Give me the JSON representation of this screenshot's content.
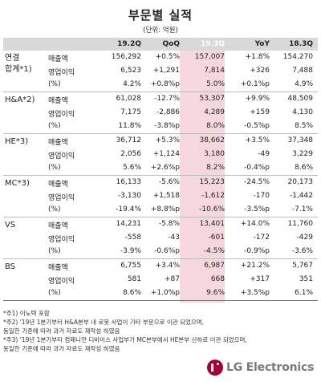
{
  "title": "부문별 실적",
  "unit": "(단위: 억원)",
  "headers": [
    "19.2Q",
    "QoQ",
    "19.3Q",
    "YoY",
    "18.3Q"
  ],
  "groups": [
    {
      "label_line1": "연결",
      "label_line2": "합계*1)",
      "rows": [
        {
          "metric": "매출액",
          "v": [
            "156,292",
            "+0.5%",
            "157,007",
            "+1.8%",
            "154,270"
          ]
        },
        {
          "metric": "영업이익",
          "v": [
            "6,523",
            "+1,291",
            "7,814",
            "+326",
            "7,488"
          ]
        },
        {
          "metric": "(%)",
          "v": [
            "4.2%",
            "+0.8%p",
            "5.0%",
            "+0.1%p",
            "4.9%"
          ]
        }
      ]
    },
    {
      "label_line1": "H&A*2)",
      "label_line2": "",
      "rows": [
        {
          "metric": "매출액",
          "v": [
            "61,028",
            "-12.7%",
            "53,307",
            "+9.9%",
            "48,509"
          ]
        },
        {
          "metric": "영업이익",
          "v": [
            "7,175",
            "-2,886",
            "4,289",
            "+159",
            "4,130"
          ]
        },
        {
          "metric": "(%)",
          "v": [
            "11.8%",
            "-3.8%p",
            "8.0%",
            "-0.5%p",
            "8.5%"
          ]
        }
      ]
    },
    {
      "label_line1": "HE*3)",
      "label_line2": "",
      "rows": [
        {
          "metric": "매출액",
          "v": [
            "36,712",
            "+5.3%",
            "38,662",
            "+3.5%",
            "37,348"
          ]
        },
        {
          "metric": "영업이익",
          "v": [
            "2,056",
            "+1,124",
            "3,180",
            "-49",
            "3,229"
          ]
        },
        {
          "metric": "(%)",
          "v": [
            "5.6%",
            "+2.6%p",
            "8.2%",
            "-0.4%p",
            "8.6%"
          ]
        }
      ]
    },
    {
      "label_line1": "MC*3)",
      "label_line2": "",
      "rows": [
        {
          "metric": "매출액",
          "v": [
            "16,133",
            "-5.6%",
            "15,223",
            "-24.5%",
            "20,173"
          ]
        },
        {
          "metric": "영업이익",
          "v": [
            "-3,130",
            "+1,518",
            "-1,612",
            "-170",
            "-1,442"
          ]
        },
        {
          "metric": "(%)",
          "v": [
            "-19.4%",
            "+8.8%p",
            "-10.6%",
            "-3.5%p",
            "-7.1%"
          ]
        }
      ]
    },
    {
      "label_line1": "VS",
      "label_line2": "",
      "rows": [
        {
          "metric": "매출액",
          "v": [
            "14,231",
            "-5.8%",
            "13,401",
            "+14.0%",
            "11,760"
          ]
        },
        {
          "metric": "영업이익",
          "v": [
            "-558",
            "-43",
            "-601",
            "-172",
            "-429"
          ]
        },
        {
          "metric": "(%)",
          "v": [
            "-3.9%",
            "-0.6%p",
            "-4.5%",
            "-0.9%p",
            "-3.6%"
          ]
        }
      ]
    },
    {
      "label_line1": "BS",
      "label_line2": "",
      "rows": [
        {
          "metric": "매출액",
          "v": [
            "6,755",
            "+3.4%",
            "6,987",
            "+21.2%",
            "5,767"
          ]
        },
        {
          "metric": "영업이익",
          "v": [
            "581",
            "+87",
            "668",
            "+317",
            "351"
          ]
        },
        {
          "metric": "(%)",
          "v": [
            "8.6%",
            "+1.0%p",
            "9.6%",
            "+3.5%p",
            "6.1%"
          ]
        }
      ]
    }
  ],
  "notes": [
    "*주1) 이노텍 포함",
    "*주2) '19년 1분기부터 H&A본부 내 로봇 사업이 기타 부문으로 이관 되었으며,",
    "        동일한 기준에 따라 과거 자료도 재작성 하였음",
    "*주3) '19년 1분기부터 컴패니언 디바이스 사업부가 MC본부에서 HE본부 산하로 이관 되었으며,",
    "        동일한 기준에 따라 과거 자료도 재작성 하였음"
  ],
  "logo_text": "LG Electronics",
  "colors": {
    "highlight_header": "#e95c7c",
    "highlight_column": "#f6d7dd",
    "header_bg": "#d9d9d9",
    "logo": "#a50034"
  }
}
